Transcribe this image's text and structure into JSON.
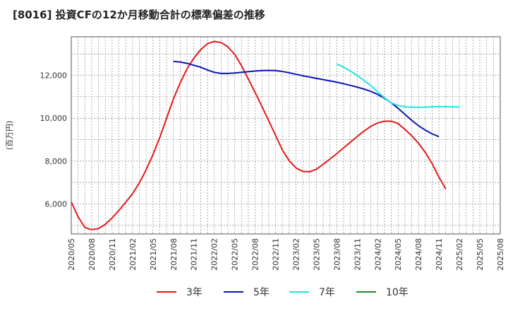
{
  "chart_data": {
    "type": "line",
    "title": "[8016]  投資CFの12か月移動合計の標準偏差の推移",
    "ylabel": "(百万円)",
    "xlabel": "",
    "ylim": [
      4600,
      13800
    ],
    "yticks": [
      6000,
      8000,
      10000,
      12000
    ],
    "ytick_labels": [
      "6,000",
      "8,000",
      "10,000",
      "12,000"
    ],
    "xlim": [
      "2020/05",
      "2025/08"
    ],
    "xticks": [
      "2020/05",
      "2020/08",
      "2020/11",
      "2021/02",
      "2021/05",
      "2021/08",
      "2021/11",
      "2022/02",
      "2022/05",
      "2022/08",
      "2022/11",
      "2023/02",
      "2023/05",
      "2023/08",
      "2023/11",
      "2024/02",
      "2024/05",
      "2024/08",
      "2024/11",
      "2025/02",
      "2025/05",
      "2025/08"
    ],
    "grid": true,
    "legend_position": "bottom",
    "series": [
      {
        "name": "3年",
        "color": "#e41a1c",
        "points": [
          [
            "2020/05",
            6100
          ],
          [
            "2020/06",
            5400
          ],
          [
            "2020/07",
            4900
          ],
          [
            "2020/08",
            4800
          ],
          [
            "2020/09",
            4850
          ],
          [
            "2020/10",
            5050
          ],
          [
            "2020/11",
            5350
          ],
          [
            "2020/12",
            5700
          ],
          [
            "2021/01",
            6080
          ],
          [
            "2021/02",
            6480
          ],
          [
            "2021/03",
            6980
          ],
          [
            "2021/04",
            7600
          ],
          [
            "2021/05",
            8300
          ],
          [
            "2021/06",
            9100
          ],
          [
            "2021/07",
            10000
          ],
          [
            "2021/08",
            10900
          ],
          [
            "2021/09",
            11650
          ],
          [
            "2021/10",
            12300
          ],
          [
            "2021/11",
            12800
          ],
          [
            "2021/12",
            13200
          ],
          [
            "2022/01",
            13480
          ],
          [
            "2022/02",
            13580
          ],
          [
            "2022/03",
            13530
          ],
          [
            "2022/04",
            13330
          ],
          [
            "2022/05",
            12980
          ],
          [
            "2022/06",
            12450
          ],
          [
            "2022/07",
            11830
          ],
          [
            "2022/08",
            11200
          ],
          [
            "2022/09",
            10550
          ],
          [
            "2022/10",
            9880
          ],
          [
            "2022/11",
            9200
          ],
          [
            "2022/12",
            8520
          ],
          [
            "2023/01",
            8020
          ],
          [
            "2023/02",
            7680
          ],
          [
            "2023/03",
            7520
          ],
          [
            "2023/04",
            7500
          ],
          [
            "2023/05",
            7620
          ],
          [
            "2023/06",
            7850
          ],
          [
            "2023/07",
            8100
          ],
          [
            "2023/08",
            8350
          ],
          [
            "2023/09",
            8620
          ],
          [
            "2023/10",
            8880
          ],
          [
            "2023/11",
            9150
          ],
          [
            "2023/12",
            9400
          ],
          [
            "2024/01",
            9620
          ],
          [
            "2024/02",
            9780
          ],
          [
            "2024/03",
            9860
          ],
          [
            "2024/04",
            9860
          ],
          [
            "2024/05",
            9750
          ],
          [
            "2024/06",
            9480
          ],
          [
            "2024/07",
            9180
          ],
          [
            "2024/08",
            8830
          ],
          [
            "2024/09",
            8400
          ],
          [
            "2024/10",
            7880
          ],
          [
            "2024/11",
            7250
          ],
          [
            "2024/12",
            6700
          ]
        ]
      },
      {
        "name": "5年",
        "color": "#0a14b8",
        "points": [
          [
            "2021/08",
            12650
          ],
          [
            "2021/09",
            12620
          ],
          [
            "2021/10",
            12560
          ],
          [
            "2021/11",
            12470
          ],
          [
            "2021/12",
            12380
          ],
          [
            "2022/01",
            12250
          ],
          [
            "2022/02",
            12140
          ],
          [
            "2022/03",
            12090
          ],
          [
            "2022/04",
            12090
          ],
          [
            "2022/05",
            12110
          ],
          [
            "2022/06",
            12140
          ],
          [
            "2022/07",
            12170
          ],
          [
            "2022/08",
            12200
          ],
          [
            "2022/09",
            12220
          ],
          [
            "2022/10",
            12230
          ],
          [
            "2022/11",
            12220
          ],
          [
            "2022/12",
            12180
          ],
          [
            "2023/01",
            12120
          ],
          [
            "2023/02",
            12050
          ],
          [
            "2023/03",
            11980
          ],
          [
            "2023/04",
            11920
          ],
          [
            "2023/05",
            11860
          ],
          [
            "2023/06",
            11800
          ],
          [
            "2023/07",
            11740
          ],
          [
            "2023/08",
            11680
          ],
          [
            "2023/09",
            11610
          ],
          [
            "2023/10",
            11530
          ],
          [
            "2023/11",
            11450
          ],
          [
            "2023/12",
            11360
          ],
          [
            "2024/01",
            11250
          ],
          [
            "2024/02",
            11110
          ],
          [
            "2024/03",
            10930
          ],
          [
            "2024/04",
            10720
          ],
          [
            "2024/05",
            10460
          ],
          [
            "2024/06",
            10180
          ],
          [
            "2024/07",
            9900
          ],
          [
            "2024/08",
            9650
          ],
          [
            "2024/09",
            9440
          ],
          [
            "2024/10",
            9270
          ],
          [
            "2024/11",
            9140
          ]
        ]
      },
      {
        "name": "7年",
        "color": "#22e5e5",
        "points": [
          [
            "2023/08",
            12530
          ],
          [
            "2023/09",
            12380
          ],
          [
            "2023/10",
            12200
          ],
          [
            "2023/11",
            11990
          ],
          [
            "2023/12",
            11760
          ],
          [
            "2024/01",
            11520
          ],
          [
            "2024/02",
            11230
          ],
          [
            "2024/03",
            10950
          ],
          [
            "2024/04",
            10720
          ],
          [
            "2024/05",
            10590
          ],
          [
            "2024/06",
            10530
          ],
          [
            "2024/07",
            10510
          ],
          [
            "2024/08",
            10510
          ],
          [
            "2024/09",
            10520
          ],
          [
            "2024/10",
            10530
          ],
          [
            "2024/11",
            10540
          ],
          [
            "2024/12",
            10540
          ],
          [
            "2025/01",
            10530
          ],
          [
            "2025/02",
            10520
          ]
        ]
      },
      {
        "name": "10年",
        "color": "#228b22",
        "points": []
      }
    ]
  }
}
